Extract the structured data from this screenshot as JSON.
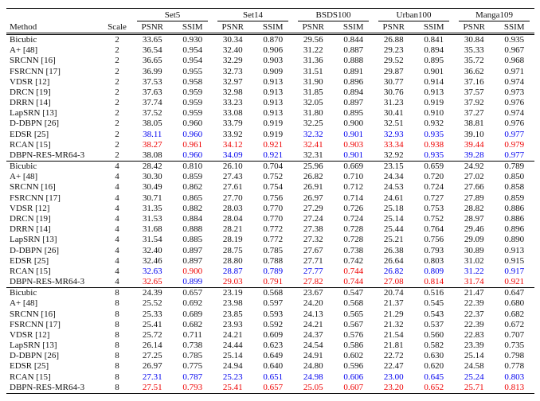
{
  "table": {
    "headers": {
      "method": "Method",
      "scale": "Scale",
      "psnr": "PSNR",
      "ssim": "SSIM"
    },
    "datasets": [
      "Set5",
      "Set14",
      "BSDS100",
      "Urban100",
      "Manga109"
    ],
    "value_colors": {
      "k": "#111111",
      "b": "#0000ee",
      "r": "#ee0000"
    },
    "groups": [
      {
        "scale": "2",
        "rows": [
          {
            "method": "Bicubic",
            "vals": [
              "33.65",
              "0.930",
              "30.34",
              "0.870",
              "29.56",
              "0.844",
              "26.88",
              "0.841",
              "30.84",
              "0.935"
            ]
          },
          {
            "method": "A+ [48]",
            "vals": [
              "36.54",
              "0.954",
              "32.40",
              "0.906",
              "31.22",
              "0.887",
              "29.23",
              "0.894",
              "35.33",
              "0.967"
            ]
          },
          {
            "method": "SRCNN [16]",
            "vals": [
              "36.65",
              "0.954",
              "32.29",
              "0.903",
              "31.36",
              "0.888",
              "29.52",
              "0.895",
              "35.72",
              "0.968"
            ]
          },
          {
            "method": "FSRCNN [17]",
            "vals": [
              "36.99",
              "0.955",
              "32.73",
              "0.909",
              "31.51",
              "0.891",
              "29.87",
              "0.901",
              "36.62",
              "0.971"
            ]
          },
          {
            "method": "VDSR [12]",
            "vals": [
              "37.53",
              "0.958",
              "32.97",
              "0.913",
              "31.90",
              "0.896",
              "30.77",
              "0.914",
              "37.16",
              "0.974"
            ]
          },
          {
            "method": "DRCN [19]",
            "vals": [
              "37.63",
              "0.959",
              "32.98",
              "0.913",
              "31.85",
              "0.894",
              "30.76",
              "0.913",
              "37.57",
              "0.973"
            ]
          },
          {
            "method": "DRRN [14]",
            "vals": [
              "37.74",
              "0.959",
              "33.23",
              "0.913",
              "32.05",
              "0.897",
              "31.23",
              "0.919",
              "37.92",
              "0.976"
            ]
          },
          {
            "method": "LapSRN [13]",
            "vals": [
              "37.52",
              "0.959",
              "33.08",
              "0.913",
              "31.80",
              "0.895",
              "30.41",
              "0.910",
              "37.27",
              "0.974"
            ]
          },
          {
            "method": "D-DBPN [26]",
            "vals": [
              "38.05",
              "0.960",
              "33.79",
              "0.919",
              "32.25",
              "0.900",
              "32.51",
              "0.932",
              "38.81",
              "0.976"
            ]
          },
          {
            "method": "EDSR [25]",
            "vals": [
              "38.11",
              "0.960",
              "33.92",
              "0.919",
              "32.32",
              "0.901",
              "32.93",
              "0.935",
              "39.10",
              "0.977"
            ],
            "colors": "bbkkbbbbkb"
          },
          {
            "method": "RCAN [15]",
            "vals": [
              "38.27",
              "0.961",
              "34.12",
              "0.921",
              "32.41",
              "0.903",
              "33.34",
              "0.938",
              "39.44",
              "0.979"
            ],
            "colors": "rrrrrrrrrr"
          },
          {
            "method": "DBPN-RES-MR64-3",
            "vals": [
              "38.08",
              "0.960",
              "34.09",
              "0.921",
              "32.31",
              "0.901",
              "32.92",
              "0.935",
              "39.28",
              "0.977"
            ],
            "colors": "kbbbkbkbbb"
          }
        ]
      },
      {
        "scale": "4",
        "rows": [
          {
            "method": "Bicubic",
            "vals": [
              "28.42",
              "0.810",
              "26.10",
              "0.704",
              "25.96",
              "0.669",
              "23.15",
              "0.659",
              "24.92",
              "0.789"
            ]
          },
          {
            "method": "A+ [48]",
            "vals": [
              "30.30",
              "0.859",
              "27.43",
              "0.752",
              "26.82",
              "0.710",
              "24.34",
              "0.720",
              "27.02",
              "0.850"
            ]
          },
          {
            "method": "SRCNN [16]",
            "vals": [
              "30.49",
              "0.862",
              "27.61",
              "0.754",
              "26.91",
              "0.712",
              "24.53",
              "0.724",
              "27.66",
              "0.858"
            ]
          },
          {
            "method": "FSRCNN [17]",
            "vals": [
              "30.71",
              "0.865",
              "27.70",
              "0.756",
              "26.97",
              "0.714",
              "24.61",
              "0.727",
              "27.89",
              "0.859"
            ]
          },
          {
            "method": "VDSR [12]",
            "vals": [
              "31.35",
              "0.882",
              "28.03",
              "0.770",
              "27.29",
              "0.726",
              "25.18",
              "0.753",
              "28.82",
              "0.886"
            ]
          },
          {
            "method": "DRCN [19]",
            "vals": [
              "31.53",
              "0.884",
              "28.04",
              "0.770",
              "27.24",
              "0.724",
              "25.14",
              "0.752",
              "28.97",
              "0.886"
            ]
          },
          {
            "method": "DRRN [14]",
            "vals": [
              "31.68",
              "0.888",
              "28.21",
              "0.772",
              "27.38",
              "0.728",
              "25.44",
              "0.764",
              "29.46",
              "0.896"
            ]
          },
          {
            "method": "LapSRN [13]",
            "vals": [
              "31.54",
              "0.885",
              "28.19",
              "0.772",
              "27.32",
              "0.728",
              "25.21",
              "0.756",
              "29.09",
              "0.890"
            ]
          },
          {
            "method": "D-DBPN [26]",
            "vals": [
              "32.40",
              "0.897",
              "28.75",
              "0.785",
              "27.67",
              "0.738",
              "26.38",
              "0.793",
              "30.89",
              "0.913"
            ]
          },
          {
            "method": "EDSR [25]",
            "vals": [
              "32.46",
              "0.897",
              "28.80",
              "0.788",
              "27.71",
              "0.742",
              "26.64",
              "0.803",
              "31.02",
              "0.915"
            ]
          },
          {
            "method": "RCAN [15]",
            "vals": [
              "32.63",
              "0.900",
              "28.87",
              "0.789",
              "27.77",
              "0.744",
              "26.82",
              "0.809",
              "31.22",
              "0.917"
            ],
            "colors": "brbbbrbbbb"
          },
          {
            "method": "DBPN-RES-MR64-3",
            "vals": [
              "32.65",
              "0.899",
              "29.03",
              "0.791",
              "27.82",
              "0.744",
              "27.08",
              "0.814",
              "31.74",
              "0.921"
            ],
            "colors": "rbrrrrrrrr"
          }
        ]
      },
      {
        "scale": "8",
        "rows": [
          {
            "method": "Bicubic",
            "vals": [
              "24.39",
              "0.657",
              "23.19",
              "0.568",
              "23.67",
              "0.547",
              "20.74",
              "0.516",
              "21.47",
              "0.647"
            ]
          },
          {
            "method": "A+ [48]",
            "vals": [
              "25.52",
              "0.692",
              "23.98",
              "0.597",
              "24.20",
              "0.568",
              "21.37",
              "0.545",
              "22.39",
              "0.680"
            ]
          },
          {
            "method": "SRCNN [16]",
            "vals": [
              "25.33",
              "0.689",
              "23.85",
              "0.593",
              "24.13",
              "0.565",
              "21.29",
              "0.543",
              "22.37",
              "0.682"
            ]
          },
          {
            "method": "FSRCNN [17]",
            "vals": [
              "25.41",
              "0.682",
              "23.93",
              "0.592",
              "24.21",
              "0.567",
              "21.32",
              "0.537",
              "22.39",
              "0.672"
            ]
          },
          {
            "method": "VDSR [12]",
            "vals": [
              "25.72",
              "0.711",
              "24.21",
              "0.609",
              "24.37",
              "0.576",
              "21.54",
              "0.560",
              "22.83",
              "0.707"
            ]
          },
          {
            "method": "LapSRN [13]",
            "vals": [
              "26.14",
              "0.738",
              "24.44",
              "0.623",
              "24.54",
              "0.586",
              "21.81",
              "0.582",
              "23.39",
              "0.735"
            ]
          },
          {
            "method": "D-DBPN [26]",
            "vals": [
              "27.25",
              "0.785",
              "25.14",
              "0.649",
              "24.91",
              "0.602",
              "22.72",
              "0.630",
              "25.14",
              "0.798"
            ]
          },
          {
            "method": "EDSR [25]",
            "vals": [
              "26.97",
              "0.775",
              "24.94",
              "0.640",
              "24.80",
              "0.596",
              "22.47",
              "0.620",
              "24.58",
              "0.778"
            ]
          },
          {
            "method": "RCAN [15]",
            "vals": [
              "27.31",
              "0.787",
              "25.23",
              "0.651",
              "24.98",
              "0.606",
              "23.00",
              "0.645",
              "25.24",
              "0.803"
            ],
            "colors": "bbbbbbbbbb"
          },
          {
            "method": "DBPN-RES-MR64-3",
            "vals": [
              "27.51",
              "0.793",
              "25.41",
              "0.657",
              "25.05",
              "0.607",
              "23.20",
              "0.652",
              "25.71",
              "0.813"
            ],
            "colors": "rrrrrrrrrr"
          }
        ]
      }
    ]
  }
}
